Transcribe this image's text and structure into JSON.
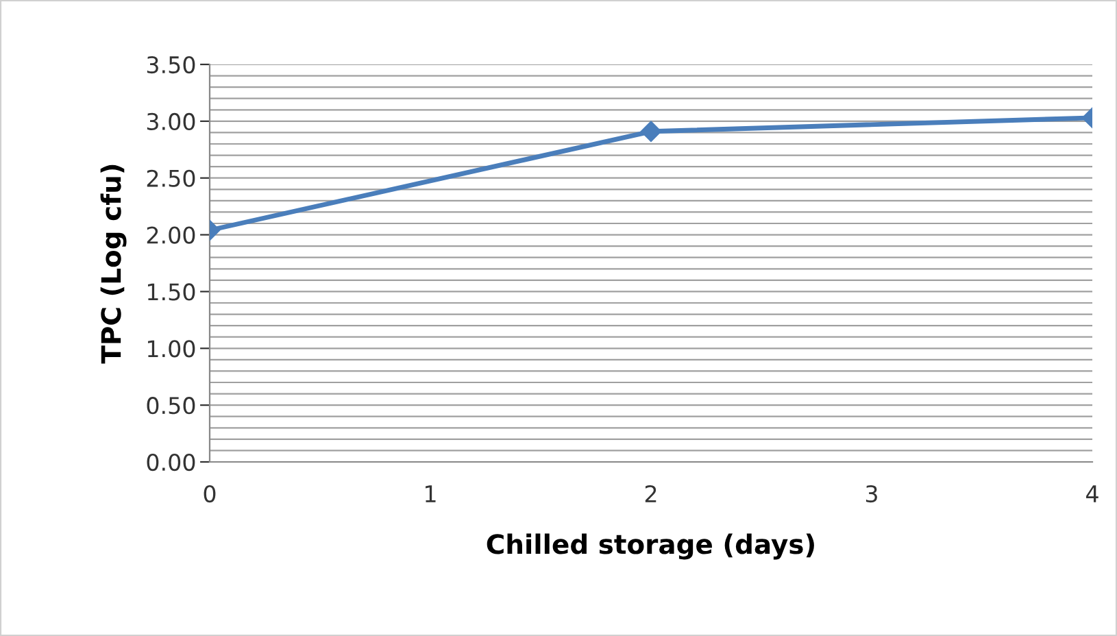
{
  "chart_data": {
    "type": "line",
    "xlabel": "Chilled storage (days)",
    "ylabel": "TPC (Log cfu)",
    "x": [
      0,
      2,
      4
    ],
    "series": [
      {
        "color": "#4a7ebb",
        "values": [
          2.04,
          2.91,
          3.03
        ]
      }
    ],
    "marker": "diamond",
    "line_style": "solid",
    "xlim": [
      0,
      4
    ],
    "xticks": [
      0,
      1,
      2,
      3,
      4
    ],
    "ylim": [
      0,
      3.5
    ],
    "yticks": [
      {
        "value": 0,
        "label": "0.00"
      },
      {
        "value": 0.1,
        "label": null
      },
      {
        "value": 0.2,
        "label": null
      },
      {
        "value": 0.3,
        "label": null
      },
      {
        "value": 0.4,
        "label": null
      },
      {
        "value": 0.5,
        "label": "0.50"
      },
      {
        "value": 0.6,
        "label": null
      },
      {
        "value": 0.7,
        "label": null
      },
      {
        "value": 0.8,
        "label": null
      },
      {
        "value": 0.9,
        "label": null
      },
      {
        "value": 1.0,
        "label": "1.00"
      },
      {
        "value": 1.1,
        "label": null
      },
      {
        "value": 1.2,
        "label": null
      },
      {
        "value": 1.3,
        "label": null
      },
      {
        "value": 1.4,
        "label": null
      },
      {
        "value": 1.5,
        "label": "1.50"
      },
      {
        "value": 1.6,
        "label": null
      },
      {
        "value": 1.7,
        "label": null
      },
      {
        "value": 1.8,
        "label": null
      },
      {
        "value": 1.9,
        "label": null
      },
      {
        "value": 2.0,
        "label": "2.00"
      },
      {
        "value": 2.1,
        "label": null
      },
      {
        "value": 2.2,
        "label": null
      },
      {
        "value": 2.3,
        "label": null
      },
      {
        "value": 2.4,
        "label": null
      },
      {
        "value": 2.5,
        "label": "2.50"
      },
      {
        "value": 2.6,
        "label": null
      },
      {
        "value": 2.7,
        "label": null
      },
      {
        "value": 2.8,
        "label": null
      },
      {
        "value": 2.9,
        "label": null
      },
      {
        "value": 3.0,
        "label": "3.00"
      },
      {
        "value": 3.1,
        "label": null
      },
      {
        "value": 3.2,
        "label": null
      },
      {
        "value": 3.3,
        "label": null
      },
      {
        "value": 3.4,
        "label": null
      },
      {
        "value": 3.5,
        "label": "3.50"
      }
    ],
    "grid": "y"
  }
}
